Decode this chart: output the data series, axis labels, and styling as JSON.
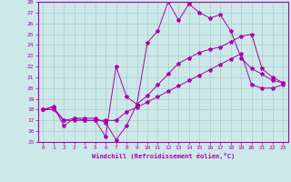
{
  "title": "",
  "xlabel": "Windchill (Refroidissement éolien,°C)",
  "bg_color": "#cce8e8",
  "line_color": "#aa00aa",
  "grid_color": "#aacccc",
  "xlim": [
    -0.5,
    23.5
  ],
  "ylim": [
    15,
    28
  ],
  "xticks": [
    0,
    1,
    2,
    3,
    4,
    5,
    6,
    7,
    8,
    9,
    10,
    11,
    12,
    13,
    14,
    15,
    16,
    17,
    18,
    19,
    20,
    21,
    22,
    23
  ],
  "yticks": [
    15,
    16,
    17,
    18,
    19,
    20,
    21,
    22,
    23,
    24,
    25,
    26,
    27,
    28
  ],
  "line1_x": [
    0,
    1,
    2,
    3,
    4,
    5,
    6,
    7,
    8,
    9,
    10,
    11,
    12,
    13,
    14,
    15,
    16,
    17,
    18,
    19,
    20,
    21,
    22,
    23
  ],
  "line1_y": [
    18,
    18.3,
    16.5,
    17.2,
    17.2,
    17.2,
    16.8,
    15.2,
    16.5,
    18.5,
    19.3,
    20.3,
    21.3,
    22.3,
    22.8,
    23.3,
    23.6,
    23.8,
    24.3,
    24.8,
    25.0,
    21.8,
    21.0,
    20.5
  ],
  "line2_x": [
    0,
    1,
    2,
    3,
    4,
    5,
    6,
    7,
    8,
    9,
    10,
    11,
    12,
    13,
    14,
    15,
    16,
    17,
    18,
    19,
    20,
    21,
    22,
    23
  ],
  "line2_y": [
    18,
    18.2,
    17.0,
    17.2,
    17.0,
    17.0,
    15.5,
    22.0,
    19.2,
    18.5,
    24.2,
    25.3,
    28.0,
    26.3,
    27.8,
    27.0,
    26.5,
    26.8,
    25.3,
    22.8,
    21.8,
    21.3,
    20.7,
    20.5
  ],
  "line3_x": [
    0,
    1,
    2,
    3,
    4,
    5,
    6,
    7,
    8,
    9,
    10,
    11,
    12,
    13,
    14,
    15,
    16,
    17,
    18,
    19,
    20,
    21,
    22,
    23
  ],
  "line3_y": [
    18,
    18,
    17,
    17,
    17,
    17,
    17,
    17,
    17.8,
    18.2,
    18.7,
    19.2,
    19.7,
    20.2,
    20.7,
    21.2,
    21.7,
    22.2,
    22.7,
    23.2,
    20.3,
    20.0,
    20.0,
    20.3
  ]
}
